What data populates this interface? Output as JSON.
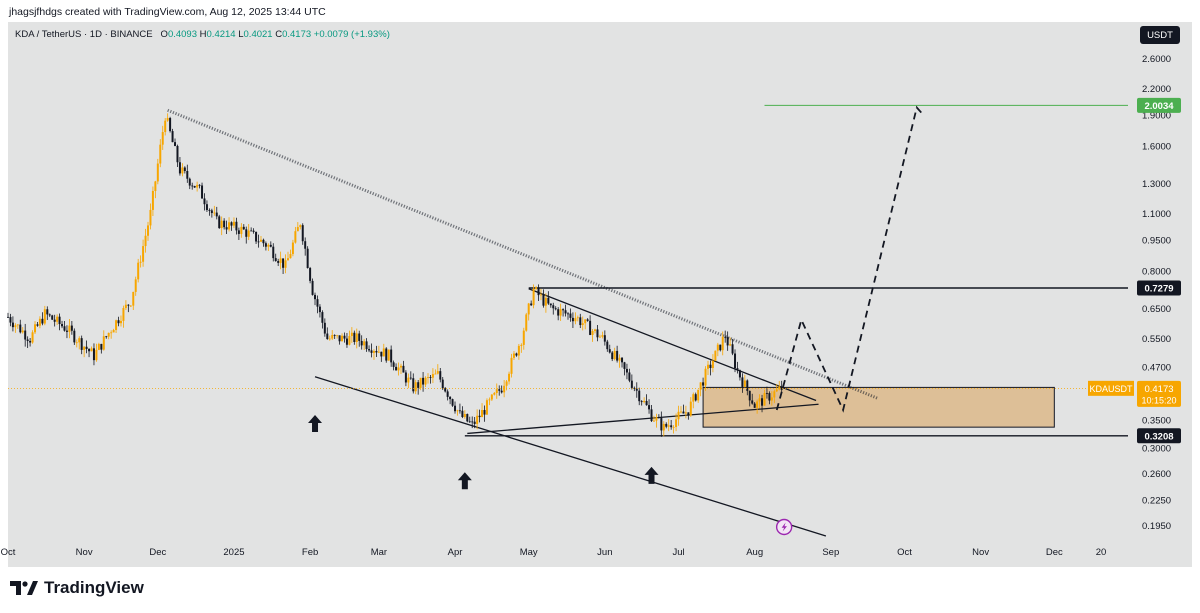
{
  "header": {
    "author_line": "jhagsjfhdgs created with TradingView.com, Aug 12, 2025 13:44 UTC"
  },
  "legend": {
    "symbol": "KDA / TetherUS · 1D · BINANCE",
    "O_label": "O",
    "O": "0.4093",
    "H_label": "H",
    "H": "0.4214",
    "L_label": "L",
    "L": "0.4021",
    "C_label": "C",
    "C": "0.4173",
    "change": "+0.0079 (+1.93%)"
  },
  "currency_button": "USDT",
  "footer": {
    "brand": "TradingView"
  },
  "colors": {
    "background": "#e2e3e3",
    "candle_up": "#f7a600",
    "candle_down": "#131722",
    "target_line": "#4caf50",
    "box_fill": "#dcb98a",
    "price_tag": "#f7a600"
  },
  "icons": [
    "up-arrow-icon",
    "lightning-icon",
    "tradingview-logo-icon"
  ],
  "chart_data": {
    "type": "candlestick",
    "title": "",
    "y_scale": "log",
    "ylim": [
      0.18,
      2.8
    ],
    "x_range": [
      "2024-10-01",
      "2025-12-31"
    ],
    "y_ticks": [
      "2.6000",
      "2.2000",
      "1.9000",
      "1.6000",
      "1.3000",
      "1.1000",
      "0.9500",
      "0.8000",
      "0.6500",
      "0.5500",
      "0.4700",
      "0.3500",
      "0.3000",
      "0.2600",
      "0.2250",
      "0.1950"
    ],
    "x_ticks": [
      {
        "label": "Oct",
        "date": "2024-10-01"
      },
      {
        "label": "Nov",
        "date": "2024-11-01"
      },
      {
        "label": "Dec",
        "date": "2024-12-01"
      },
      {
        "label": "2025",
        "date": "2025-01-01"
      },
      {
        "label": "Feb",
        "date": "2025-02-01"
      },
      {
        "label": "Mar",
        "date": "2025-03-01"
      },
      {
        "label": "Apr",
        "date": "2025-04-01"
      },
      {
        "label": "May",
        "date": "2025-05-01"
      },
      {
        "label": "Jun",
        "date": "2025-06-01"
      },
      {
        "label": "Jul",
        "date": "2025-07-01"
      },
      {
        "label": "Aug",
        "date": "2025-08-01"
      },
      {
        "label": "Sep",
        "date": "2025-09-01"
      },
      {
        "label": "Oct",
        "date": "2025-10-01"
      },
      {
        "label": "Nov",
        "date": "2025-11-01"
      },
      {
        "label": "Dec",
        "date": "2025-12-01"
      },
      {
        "label": "20",
        "date": "2025-12-20"
      }
    ],
    "price_path": [
      [
        "2024-10-01",
        0.62
      ],
      [
        "2024-10-10",
        0.55
      ],
      [
        "2024-10-16",
        0.63
      ],
      [
        "2024-10-25",
        0.58
      ],
      [
        "2024-11-05",
        0.5
      ],
      [
        "2024-11-12",
        0.58
      ],
      [
        "2024-11-20",
        0.68
      ],
      [
        "2024-11-28",
        1.1
      ],
      [
        "2024-12-04",
        1.9
      ],
      [
        "2024-12-10",
        1.4
      ],
      [
        "2024-12-18",
        1.25
      ],
      [
        "2024-12-25",
        1.05
      ],
      [
        "2025-01-05",
        1.0
      ],
      [
        "2025-01-15",
        0.92
      ],
      [
        "2025-01-22",
        0.82
      ],
      [
        "2025-01-28",
        1.05
      ],
      [
        "2025-02-02",
        0.72
      ],
      [
        "2025-02-08",
        0.55
      ],
      [
        "2025-02-20",
        0.55
      ],
      [
        "2025-03-05",
        0.5
      ],
      [
        "2025-03-15",
        0.42
      ],
      [
        "2025-03-25",
        0.45
      ],
      [
        "2025-04-03",
        0.36
      ],
      [
        "2025-04-08",
        0.34
      ],
      [
        "2025-04-20",
        0.42
      ],
      [
        "2025-04-28",
        0.55
      ],
      [
        "2025-05-03",
        0.72
      ],
      [
        "2025-05-10",
        0.65
      ],
      [
        "2025-05-20",
        0.62
      ],
      [
        "2025-05-31",
        0.55
      ],
      [
        "2025-06-10",
        0.45
      ],
      [
        "2025-06-20",
        0.36
      ],
      [
        "2025-06-25",
        0.335
      ],
      [
        "2025-07-05",
        0.37
      ],
      [
        "2025-07-12",
        0.45
      ],
      [
        "2025-07-20",
        0.56
      ],
      [
        "2025-07-25",
        0.46
      ],
      [
        "2025-08-01",
        0.38
      ],
      [
        "2025-08-07",
        0.4
      ],
      [
        "2025-08-12",
        0.4173
      ]
    ],
    "levels": [
      {
        "label": "2.0034",
        "value": 2.0034,
        "color": "#4caf50"
      },
      {
        "label": "0.7279",
        "value": 0.7279,
        "color": "#131722"
      },
      {
        "label": "0.3208",
        "value": 0.3208,
        "color": "#131722"
      }
    ],
    "current_price": {
      "symbol": "KDAUSDT",
      "value": "0.4173",
      "countdown": "10:15:20",
      "price": 0.4173
    },
    "demand_zone": {
      "from_date": "2025-07-11",
      "to_date": "2025-12-01",
      "low": 0.3365,
      "high": 0.4195
    },
    "trendlines": [
      {
        "style": "dotted",
        "from": [
          "2024-12-05",
          1.95
        ],
        "to": [
          "2025-09-20",
          0.395
        ]
      },
      {
        "style": "solid",
        "from": [
          "2025-02-03",
          0.445
        ],
        "to": [
          "2025-08-30",
          0.184
        ]
      },
      {
        "style": "solid",
        "from": [
          "2025-05-01",
          0.725
        ],
        "to": [
          "2025-08-26",
          0.39
        ]
      },
      {
        "style": "solid",
        "from": [
          "2025-04-06",
          0.325
        ],
        "to": [
          "2025-08-27",
          0.382
        ]
      }
    ],
    "projection": [
      [
        "2025-08-10",
        0.37
      ],
      [
        "2025-08-20",
        0.61
      ],
      [
        "2025-09-06",
        0.37
      ],
      [
        "2025-10-06",
        1.98
      ],
      [
        "2025-10-08",
        1.92
      ]
    ],
    "arrows": [
      [
        "2025-02-03",
        0.36
      ],
      [
        "2025-04-05",
        0.262
      ],
      [
        "2025-06-20",
        0.27
      ]
    ]
  }
}
